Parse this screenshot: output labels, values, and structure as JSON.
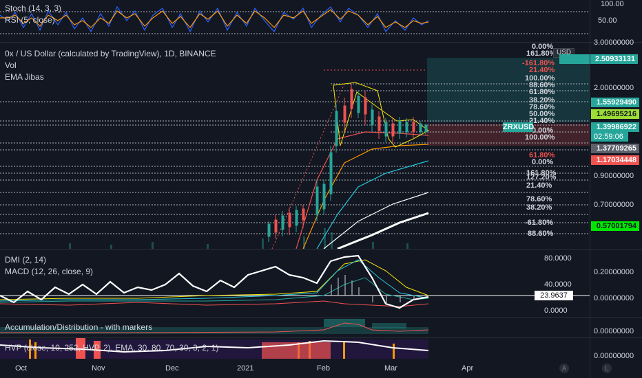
{
  "stoch_pane": {
    "legend": [
      "Stoch (14, 3, 3)",
      "RSI (5, close)"
    ],
    "axis": [
      "100.00",
      "50.00"
    ]
  },
  "main_pane": {
    "title": "0x / US Dollar (calculated by TradingView), 1D, BINANCE",
    "legend": [
      "Vol",
      "EMA Jibas"
    ],
    "currency": "USD",
    "axis": [
      "3.00000000",
      "2.00000000",
      "0.90000000",
      "0.70000000"
    ],
    "price_tags": [
      {
        "text": "2.50933131",
        "color": "#26a69a"
      },
      {
        "text": "1.55929490",
        "color": "#26a69a"
      },
      {
        "text": "1.49695216",
        "color": "#9cde34"
      },
      {
        "text": "ZRXUSD",
        "color": "#26a69a"
      },
      {
        "text": "1.39986922",
        "color": "#26a69a"
      },
      {
        "text": "02:59:06",
        "color": "#26a69a"
      },
      {
        "text": "1.37709265",
        "color": "#5d606b"
      },
      {
        "text": "1.17034448",
        "color": "#ef5350"
      },
      {
        "text": "0.57001794",
        "color": "#00e600"
      }
    ],
    "fib_labels": [
      "0.00%",
      "161.80%",
      "-161.80%",
      "21.40%",
      "100.00%",
      "88.60%",
      "61.80%",
      "38.20%",
      "78.60%",
      "50.00%",
      "21.40%",
      "0.00%",
      "100.00%",
      "61.80%",
      "0.00%",
      "161.80%",
      "127.20%",
      "21.40%",
      "78.60%",
      "38.20%",
      "-61.80%",
      "88.60%"
    ]
  },
  "dmi_pane": {
    "legend": [
      "DMI (2, 14)",
      "MACD (12, 26, close, 9)"
    ],
    "axis_left": [
      "80.0000",
      "40.0000",
      "0.0000"
    ],
    "axis_right": [
      "0.20000000",
      "0.00000000"
    ],
    "value_tag": "23.9637"
  },
  "ad_pane": {
    "legend": [
      "Accumulation/Distribution - with markers"
    ],
    "axis": [
      "0.00000000"
    ]
  },
  "hvp_pane": {
    "legend": [
      "HVP (close, 10, 252, HVP, 2), EMA, 30, 80, 70, 30, 3, 2, 1)"
    ],
    "axis": [
      "0.00000000"
    ]
  },
  "time_axis": [
    "Oct",
    "Nov",
    "Dec",
    "2021",
    "Feb",
    "Mar",
    "Apr"
  ],
  "corner_buttons": [
    "A",
    "L"
  ]
}
